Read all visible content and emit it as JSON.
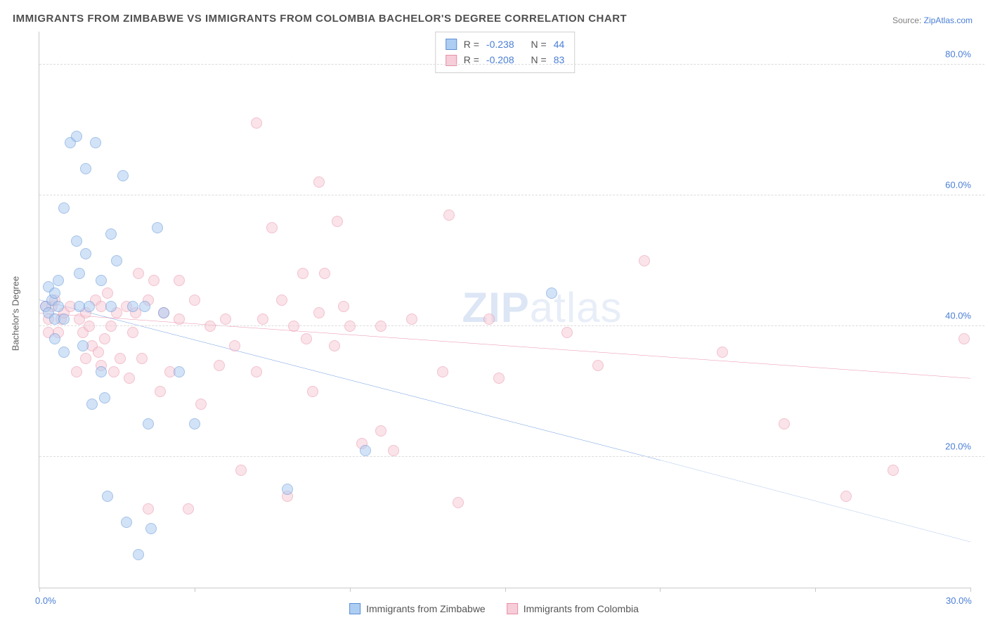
{
  "title": "IMMIGRANTS FROM ZIMBABWE VS IMMIGRANTS FROM COLOMBIA BACHELOR'S DEGREE CORRELATION CHART",
  "source_prefix": "Source: ",
  "source_name": "ZipAtlas.com",
  "y_axis_label": "Bachelor's Degree",
  "watermark": {
    "bold": "ZIP",
    "rest": "atlas"
  },
  "chart": {
    "type": "scatter",
    "xlim": [
      0,
      30
    ],
    "ylim": [
      0,
      85
    ],
    "x_ticks": [
      0,
      5,
      10,
      15,
      20,
      25,
      30
    ],
    "x_tick_labels": {
      "0": "0.0%",
      "30": "30.0%"
    },
    "y_ticks": [
      20,
      40,
      60,
      80
    ],
    "y_tick_labels": [
      "20.0%",
      "40.0%",
      "60.0%",
      "80.0%"
    ],
    "background_color": "#ffffff",
    "grid_color": "#dcdcdc",
    "axis_color": "#c8c8c8",
    "tick_label_color": "#4a7fd6",
    "title_color": "#505050",
    "title_fontsize": 15,
    "label_fontsize": 13,
    "point_radius": 8,
    "point_opacity": 0.55
  },
  "series": {
    "zimbabwe": {
      "label": "Immigrants from Zimbabwe",
      "fill": "#aecdf2",
      "stroke": "#5b8fd6",
      "line_color": "#2b6fd2",
      "R": "-0.238",
      "N": "44",
      "trend": {
        "x1": 0,
        "y1": 44,
        "x2_solid": 20,
        "y2_solid": 19.5,
        "x2": 30,
        "y2": 7
      },
      "points": [
        [
          0.2,
          43
        ],
        [
          0.3,
          46
        ],
        [
          0.3,
          42
        ],
        [
          0.4,
          44
        ],
        [
          0.5,
          45
        ],
        [
          0.5,
          41
        ],
        [
          0.5,
          38
        ],
        [
          0.6,
          47
        ],
        [
          0.6,
          43
        ],
        [
          0.8,
          58
        ],
        [
          0.8,
          41
        ],
        [
          0.8,
          36
        ],
        [
          1.0,
          68
        ],
        [
          1.2,
          69
        ],
        [
          1.2,
          53
        ],
        [
          1.3,
          48
        ],
        [
          1.3,
          43
        ],
        [
          1.4,
          37
        ],
        [
          1.5,
          64
        ],
        [
          1.5,
          51
        ],
        [
          1.6,
          43
        ],
        [
          1.7,
          28
        ],
        [
          1.8,
          68
        ],
        [
          2.0,
          47
        ],
        [
          2.0,
          33
        ],
        [
          2.1,
          29
        ],
        [
          2.2,
          14
        ],
        [
          2.3,
          54
        ],
        [
          2.3,
          43
        ],
        [
          2.5,
          50
        ],
        [
          2.7,
          63
        ],
        [
          2.8,
          10
        ],
        [
          3.0,
          43
        ],
        [
          3.2,
          5
        ],
        [
          3.4,
          43
        ],
        [
          3.5,
          25
        ],
        [
          3.6,
          9
        ],
        [
          3.8,
          55
        ],
        [
          4.0,
          42
        ],
        [
          4.5,
          33
        ],
        [
          5.0,
          25
        ],
        [
          8.0,
          15
        ],
        [
          10.5,
          21
        ],
        [
          16.5,
          45
        ]
      ]
    },
    "colombia": {
      "label": "Immigrants from Colombia",
      "fill": "#f6cdd8",
      "stroke": "#e890a8",
      "line_color": "#e15b86",
      "R": "-0.208",
      "N": "83",
      "trend": {
        "x1": 0,
        "y1": 42,
        "x2_solid": 30,
        "y2_solid": 32,
        "x2": 30,
        "y2": 32
      },
      "points": [
        [
          0.2,
          43
        ],
        [
          0.3,
          41
        ],
        [
          0.3,
          39
        ],
        [
          0.4,
          43
        ],
        [
          0.5,
          44
        ],
        [
          0.6,
          39
        ],
        [
          0.7,
          41
        ],
        [
          0.8,
          42
        ],
        [
          1.0,
          43
        ],
        [
          1.2,
          33
        ],
        [
          1.3,
          41
        ],
        [
          1.4,
          39
        ],
        [
          1.5,
          35
        ],
        [
          1.5,
          42
        ],
        [
          1.6,
          40
        ],
        [
          1.7,
          37
        ],
        [
          1.8,
          44
        ],
        [
          1.9,
          36
        ],
        [
          2.0,
          43
        ],
        [
          2.0,
          34
        ],
        [
          2.1,
          38
        ],
        [
          2.2,
          45
        ],
        [
          2.3,
          40
        ],
        [
          2.4,
          33
        ],
        [
          2.5,
          42
        ],
        [
          2.6,
          35
        ],
        [
          2.8,
          43
        ],
        [
          2.9,
          32
        ],
        [
          3.0,
          39
        ],
        [
          3.1,
          42
        ],
        [
          3.2,
          48
        ],
        [
          3.3,
          35
        ],
        [
          3.5,
          44
        ],
        [
          3.5,
          12
        ],
        [
          3.7,
          47
        ],
        [
          3.9,
          30
        ],
        [
          4.0,
          42
        ],
        [
          4.2,
          33
        ],
        [
          4.5,
          41
        ],
        [
          4.5,
          47
        ],
        [
          4.8,
          12
        ],
        [
          5.0,
          44
        ],
        [
          5.2,
          28
        ],
        [
          5.5,
          40
        ],
        [
          5.8,
          34
        ],
        [
          6.0,
          41
        ],
        [
          6.3,
          37
        ],
        [
          6.5,
          18
        ],
        [
          7.0,
          33
        ],
        [
          7.0,
          71
        ],
        [
          7.2,
          41
        ],
        [
          7.5,
          55
        ],
        [
          7.8,
          44
        ],
        [
          8.0,
          14
        ],
        [
          8.2,
          40
        ],
        [
          8.5,
          48
        ],
        [
          8.6,
          38
        ],
        [
          8.8,
          30
        ],
        [
          9.0,
          62
        ],
        [
          9.0,
          42
        ],
        [
          9.2,
          48
        ],
        [
          9.5,
          37
        ],
        [
          9.6,
          56
        ],
        [
          9.8,
          43
        ],
        [
          10.0,
          40
        ],
        [
          10.4,
          22
        ],
        [
          11.0,
          24
        ],
        [
          11.0,
          40
        ],
        [
          11.4,
          21
        ],
        [
          12.0,
          41
        ],
        [
          13.0,
          33
        ],
        [
          13.2,
          57
        ],
        [
          13.5,
          13
        ],
        [
          14.5,
          41
        ],
        [
          14.8,
          32
        ],
        [
          17.0,
          39
        ],
        [
          18.0,
          34
        ],
        [
          19.5,
          50
        ],
        [
          22.0,
          36
        ],
        [
          24.0,
          25
        ],
        [
          26.0,
          14
        ],
        [
          27.5,
          18
        ],
        [
          29.8,
          38
        ]
      ]
    }
  },
  "legend_stats_labels": {
    "R": "R =",
    "N": "N ="
  }
}
